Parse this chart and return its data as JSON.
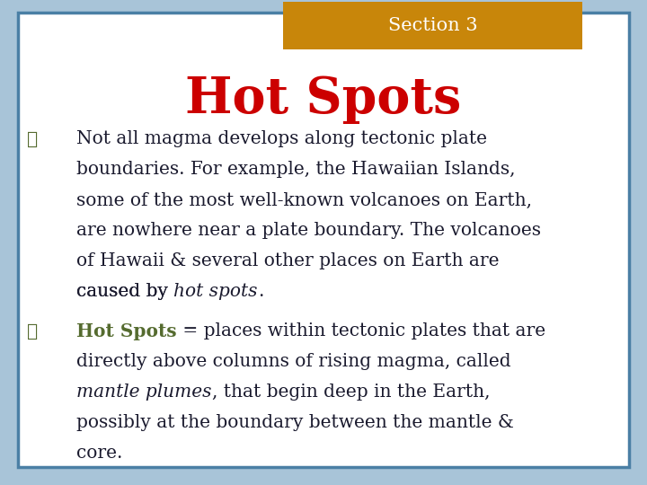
{
  "section_label": "Section 3",
  "section_bg_color": "#C8860A",
  "section_text_color": "#FFFFFF",
  "title": "Hot Spots",
  "title_color": "#CC0000",
  "background_outer": "#A8C4D8",
  "background_inner": "#FFFFFF",
  "border_color": "#4A7FA5",
  "bullet_color": "#556B2F",
  "body_text_color": "#1A1A2E",
  "diamond": "❖",
  "b1_lines": [
    "Not all magma develops along tectonic plate",
    "boundaries. For example, the Hawaiian Islands,",
    "some of the most well-known volcanoes on Earth,",
    "are nowhere near a plate boundary. The volcanoes",
    "of Hawaii & several other places on Earth are",
    "caused by "
  ],
  "b1_italic": "hot spots",
  "b1_end": ".",
  "b2_bold": "Hot Spots",
  "b2_after_bold": " = places within tectonic plates that are",
  "b2_lines": [
    "directly above columns of rising magma, called",
    "mantle plumes",
    ", that begin deep in the Earth,",
    "possibly at the boundary between the mantle &",
    "core."
  ]
}
